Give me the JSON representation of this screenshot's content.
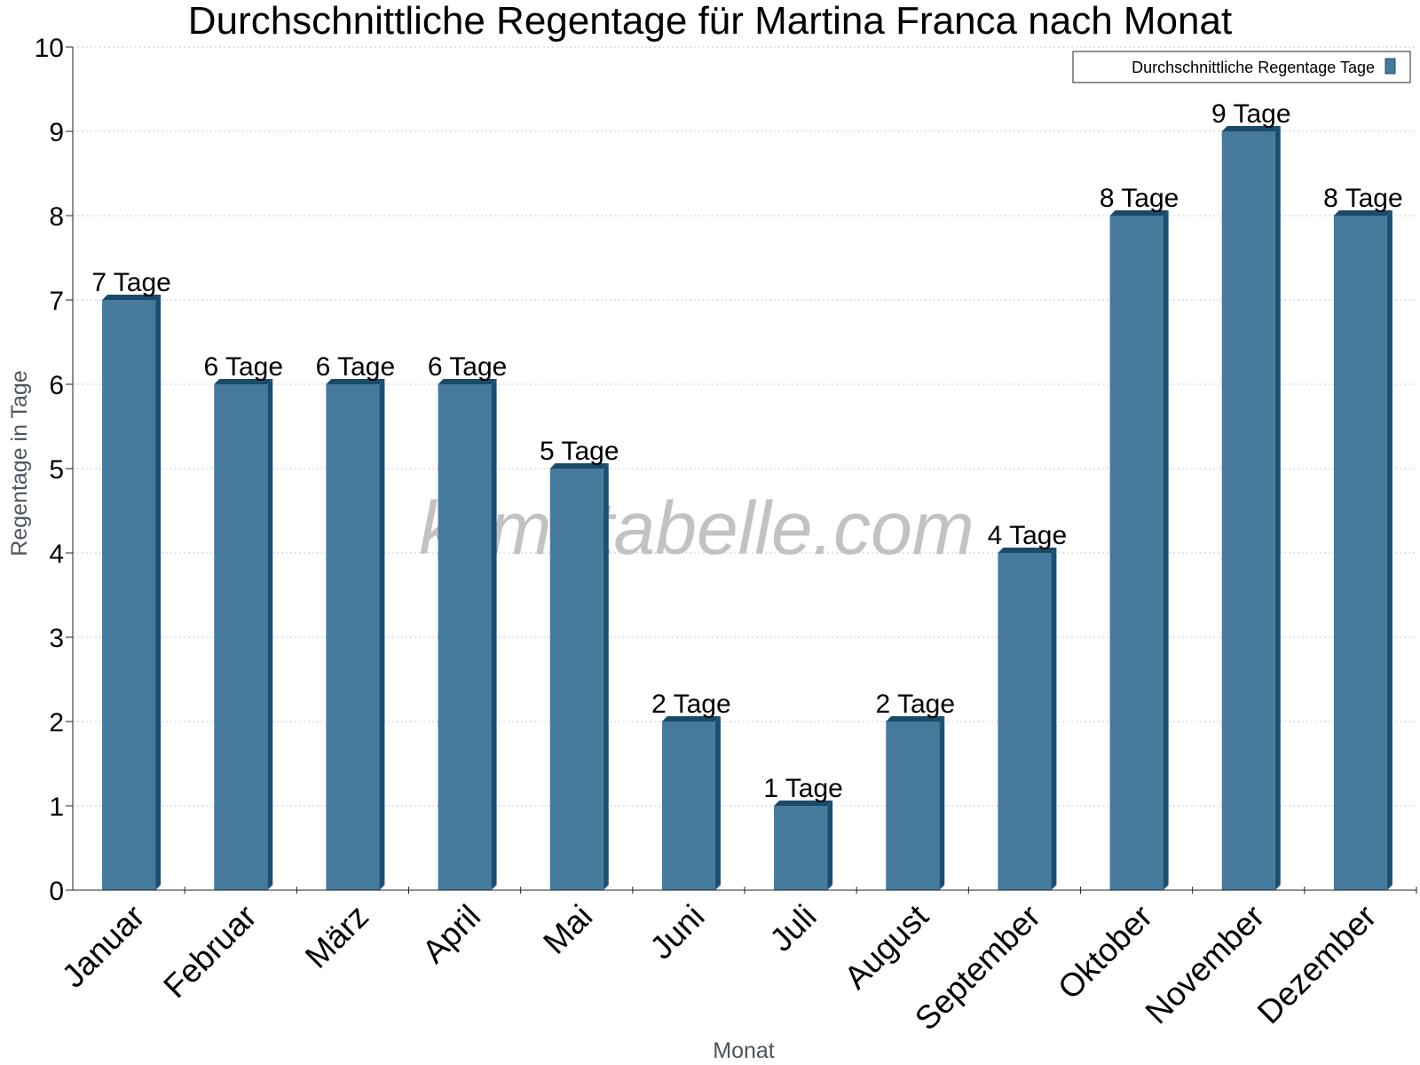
{
  "chart_data": {
    "type": "bar",
    "title": "Durchschnittliche Regentage für Martina Franca nach Monat",
    "xlabel": "Monat",
    "ylabel": "Regentage in Tage",
    "ylim": [
      0,
      10
    ],
    "yticks": [
      0,
      1,
      2,
      3,
      4,
      5,
      6,
      7,
      8,
      9,
      10
    ],
    "grid": true,
    "legend_position": "top-right",
    "categories": [
      "Januar",
      "Februar",
      "März",
      "April",
      "Mai",
      "Juni",
      "Juli",
      "August",
      "September",
      "Oktober",
      "November",
      "Dezember"
    ],
    "series": [
      {
        "name": "Durchschnittliche Regentage Tage",
        "values": [
          7,
          6,
          6,
          6,
          5,
          2,
          1,
          2,
          4,
          8,
          9,
          8
        ],
        "data_labels": [
          "7 Tage",
          "6 Tage",
          "6 Tage",
          "6 Tage",
          "5 Tage",
          "2 Tage",
          "1 Tage",
          "2 Tage",
          "4 Tage",
          "8 Tage",
          "9 Tage",
          "8 Tage"
        ]
      }
    ],
    "colors": {
      "bar_front": "#467a9c",
      "bar_side": "#1e4e6e",
      "bar_top": "#1a4a6a",
      "grid": "#c8c8c8",
      "axis": "#222222"
    }
  },
  "watermark": "klimatabelle.com"
}
